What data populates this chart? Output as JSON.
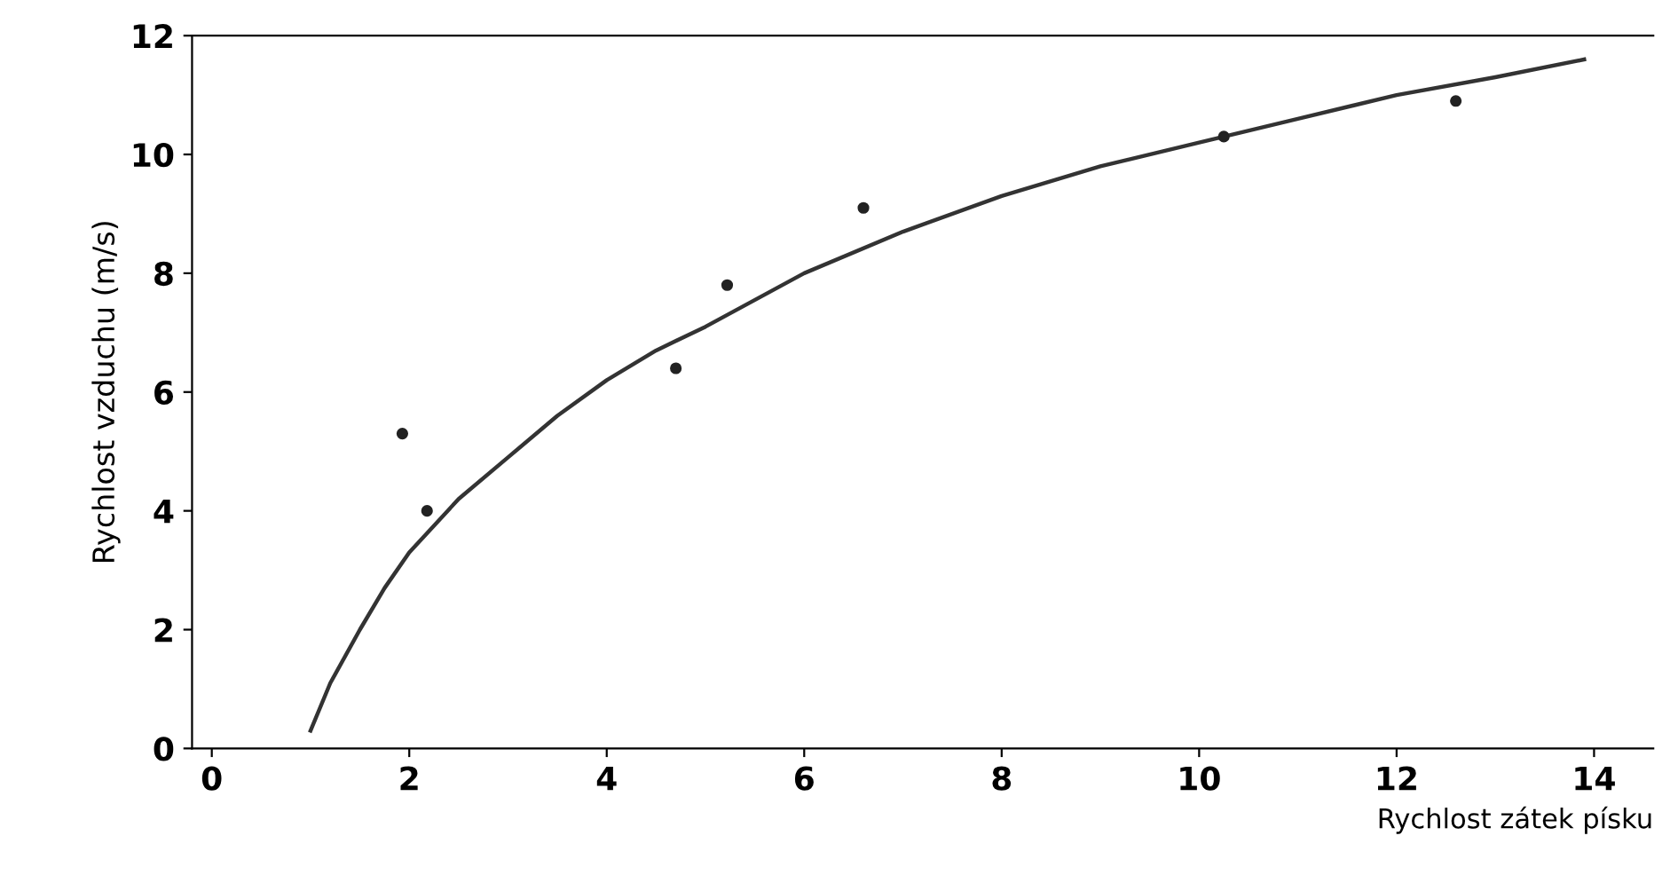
{
  "chart_data": {
    "type": "scatter",
    "xlabel": "Rychlost zátek písku",
    "ylabel": "Rychlost vzduchu (m/s)",
    "xlim": [
      -0.2,
      14.6
    ],
    "ylim": [
      0,
      12
    ],
    "xticks": [
      0,
      2,
      4,
      6,
      8,
      10,
      12,
      14
    ],
    "yticks": [
      0,
      2,
      4,
      6,
      8,
      10,
      12
    ],
    "grid": false,
    "legend": false,
    "series": [
      {
        "color": "#222222",
        "marker": "circle",
        "x": [
          1.93,
          2.18,
          4.7,
          5.22,
          6.6,
          10.25,
          12.6
        ],
        "values": [
          5.3,
          4.0,
          6.4,
          7.8,
          9.1,
          10.3,
          10.9
        ]
      },
      {
        "type": "line",
        "marker": "none",
        "color": "#333333",
        "x": [
          1,
          1.2,
          1.5,
          1.75,
          2,
          2.5,
          3,
          3.5,
          4,
          4.5,
          5,
          6,
          7,
          8,
          9,
          10,
          11,
          12,
          13,
          13.9
        ],
        "values": [
          0.3,
          1.1,
          2.0,
          2.7,
          3.3,
          4.2,
          4.9,
          5.6,
          6.2,
          6.7,
          7.1,
          8.0,
          8.7,
          9.3,
          9.8,
          10.2,
          10.6,
          11.0,
          11.3,
          11.6
        ]
      }
    ]
  }
}
